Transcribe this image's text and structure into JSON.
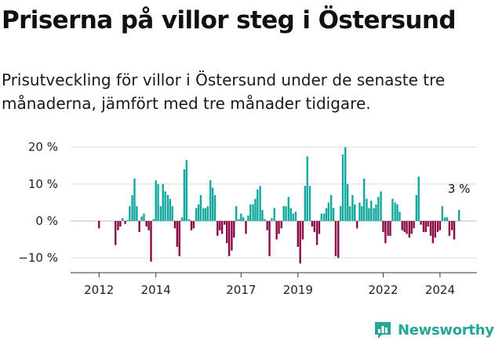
{
  "title": "Priserna på villor steg i Östersund",
  "subtitle": "Prisutveckling för villor i Östersund under de senaste tre månaderna, jämfört med tre månader tidigare.",
  "brand": "Newsworthy",
  "colors": {
    "positive": "#13a89e",
    "negative": "#8b0a45",
    "grid": "#dddddd",
    "axis": "#333333",
    "brand": "#25a696"
  },
  "chart_data": {
    "type": "bar",
    "title": "Priserna på villor steg i Östersund",
    "xlabel": "",
    "ylabel": "",
    "ylim": [
      -14,
      21
    ],
    "grid": true,
    "y_ticks": [
      {
        "value": 20,
        "label": "20 %"
      },
      {
        "value": 10,
        "label": "10 %"
      },
      {
        "value": 0,
        "label": "0 %"
      },
      {
        "value": -10,
        "label": "−10 %"
      }
    ],
    "x_ticks": [
      {
        "value": 2012,
        "label": "2012"
      },
      {
        "value": 2014,
        "label": "2014"
      },
      {
        "value": 2017,
        "label": "2017"
      },
      {
        "value": 2019,
        "label": "2019"
      },
      {
        "value": 2022,
        "label": "2022"
      },
      {
        "value": 2024,
        "label": "2024"
      }
    ],
    "x_start": 2011.0,
    "x_end": 2025.3,
    "annotation": {
      "x": 2024.67,
      "value": 3,
      "label": "3 %"
    },
    "series": [
      {
        "x": [
          2012.0,
          2012.58,
          2012.67,
          2012.75,
          2012.83,
          2012.92,
          2013.0,
          2013.08,
          2013.17,
          2013.25,
          2013.33,
          2013.42,
          2013.5,
          2013.58,
          2013.67,
          2013.75,
          2013.83,
          2013.92,
          2014.0,
          2014.08,
          2014.17,
          2014.25,
          2014.33,
          2014.42,
          2014.5,
          2014.58,
          2014.67,
          2014.75,
          2014.83,
          2014.92,
          2015.0,
          2015.08,
          2015.17,
          2015.25,
          2015.33,
          2015.42,
          2015.5,
          2015.58,
          2015.67,
          2015.75,
          2015.83,
          2015.92,
          2016.0,
          2016.08,
          2016.17,
          2016.25,
          2016.33,
          2016.42,
          2016.5,
          2016.58,
          2016.67,
          2016.75,
          2016.83,
          2016.92,
          2017.0,
          2017.08,
          2017.17,
          2017.25,
          2017.33,
          2017.42,
          2017.5,
          2017.58,
          2017.67,
          2017.75,
          2017.83,
          2017.92,
          2018.0,
          2018.08,
          2018.17,
          2018.25,
          2018.33,
          2018.42,
          2018.5,
          2018.58,
          2018.67,
          2018.75,
          2018.83,
          2018.92,
          2019.0,
          2019.08,
          2019.17,
          2019.25,
          2019.33,
          2019.42,
          2019.5,
          2019.58,
          2019.67,
          2019.75,
          2019.83,
          2019.92,
          2020.0,
          2020.08,
          2020.17,
          2020.25,
          2020.33,
          2020.42,
          2020.5,
          2020.58,
          2020.67,
          2020.75,
          2020.83,
          2020.92,
          2021.0,
          2021.08,
          2021.17,
          2021.25,
          2021.33,
          2021.42,
          2021.5,
          2021.58,
          2021.67,
          2021.75,
          2021.83,
          2021.92,
          2022.0,
          2022.08,
          2022.17,
          2022.25,
          2022.33,
          2022.42,
          2022.5,
          2022.58,
          2022.67,
          2022.75,
          2022.83,
          2022.92,
          2023.0,
          2023.08,
          2023.17,
          2023.25,
          2023.33,
          2023.42,
          2023.5,
          2023.58,
          2023.67,
          2023.75,
          2023.83,
          2023.92,
          2024.0,
          2024.08,
          2024.17,
          2024.25,
          2024.33,
          2024.42,
          2024.5,
          2024.67
        ],
        "values": [
          -2,
          -6.5,
          -2.5,
          -1.5,
          0.8,
          -0.8,
          0.3,
          4,
          7,
          11.5,
          4,
          -3,
          1.2,
          2,
          -1.5,
          -2.5,
          -11,
          0.5,
          11,
          10,
          4,
          10,
          8,
          7,
          6,
          4,
          -2,
          -7,
          -9.5,
          1,
          14,
          16.5,
          0.5,
          -2.5,
          -2,
          3.5,
          4.5,
          7,
          3.5,
          3.5,
          4,
          11,
          9,
          7,
          -4,
          -2.5,
          -3.5,
          -1,
          -6,
          -9.5,
          -8,
          -4.5,
          4,
          0.5,
          2,
          1,
          -3.5,
          1.5,
          4.5,
          4.5,
          6,
          8.5,
          9.5,
          3,
          0.5,
          -2.5,
          -9.5,
          0.8,
          3.5,
          -5,
          -3.5,
          -2,
          4,
          4,
          6.5,
          3.5,
          2,
          2.5,
          -7,
          -11.5,
          -5,
          9.5,
          17.5,
          9.5,
          -1.5,
          -3,
          -6.5,
          -3.5,
          2,
          2,
          3.5,
          5,
          7,
          3.5,
          -9.5,
          -10,
          4,
          18,
          20,
          10,
          4,
          7,
          4.5,
          -2,
          5,
          4,
          11.5,
          6,
          3.5,
          5.5,
          3.5,
          4.5,
          6.5,
          8,
          -3,
          -6,
          -4,
          -4,
          6,
          5,
          4.5,
          2.5,
          -2.5,
          -3,
          -3.5,
          -4.5,
          -3.5,
          -2,
          7,
          12,
          -1,
          -3,
          -3,
          -1.5,
          -4,
          -6,
          -4.5,
          -3,
          -2.5,
          4,
          1,
          1,
          -4,
          -2.5,
          -5,
          3
        ]
      }
    ]
  }
}
